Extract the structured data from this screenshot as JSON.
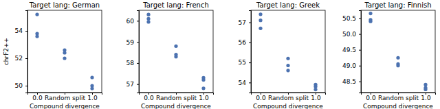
{
  "chart_data": [
    {
      "type": "scatter",
      "title": "Target lang: German",
      "x_label": "Compound divergence",
      "y_label": "chrF2++",
      "categories": [
        "0.0",
        "Random split",
        "1.0"
      ],
      "values": [
        [
          55.2,
          53.8,
          53.6
        ],
        [
          52.6,
          52.4,
          52.0
        ],
        [
          50.6,
          50.0,
          49.8
        ]
      ],
      "color": "#4c72b0",
      "marker": "circle",
      "grid": false,
      "ylim": [
        49.5,
        55.5
      ],
      "yticks": [
        50,
        52,
        54
      ]
    },
    {
      "type": "scatter",
      "title": "Target lang: French",
      "x_label": "Compound divergence",
      "categories": [
        "0.0",
        "Random split",
        "1.0"
      ],
      "values": [
        [
          60.3,
          60.1,
          59.95
        ],
        [
          58.8,
          58.4,
          58.3
        ],
        [
          57.3,
          57.2,
          56.8
        ]
      ],
      "color": "#4c72b0",
      "marker": "circle",
      "grid": false,
      "ylim": [
        56.6,
        60.5
      ],
      "yticks": [
        57,
        58,
        59,
        60
      ]
    },
    {
      "type": "scatter",
      "title": "Target lang: Greek",
      "x_label": "Compound divergence",
      "categories": [
        "0.0",
        "Random split",
        "1.0"
      ],
      "values": [
        [
          57.4,
          57.1,
          56.7
        ],
        [
          55.2,
          54.85,
          54.6
        ],
        [
          53.9,
          53.8,
          53.65
        ]
      ],
      "color": "#4c72b0",
      "marker": "circle",
      "grid": false,
      "ylim": [
        53.5,
        57.6
      ],
      "yticks": [
        54,
        55,
        56,
        57
      ]
    },
    {
      "type": "scatter",
      "title": "Target lang: Finnish",
      "x_label": "Compound divergence",
      "categories": [
        "0.0",
        "Random split",
        "1.0"
      ],
      "values": [
        [
          50.65,
          50.45,
          50.4
        ],
        [
          49.25,
          49.05,
          49.0
        ],
        [
          48.4,
          48.3,
          48.25
        ]
      ],
      "color": "#4c72b0",
      "marker": "circle",
      "grid": false,
      "ylim": [
        48.15,
        50.75
      ],
      "yticks": [
        48.5,
        {
          "value": 49,
          "label": "49.0"
        },
        49.5,
        {
          "value": 50,
          "label": "50.0"
        },
        50.5
      ]
    }
  ]
}
